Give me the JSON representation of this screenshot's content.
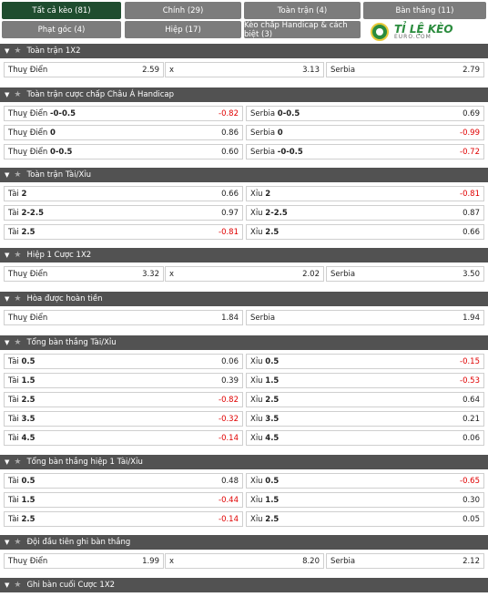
{
  "tabs": [
    {
      "label": "Tất cả kèo (81)",
      "active": true
    },
    {
      "label": "Chính (29)"
    },
    {
      "label": "Toàn trận (4)"
    },
    {
      "label": "Bàn thắng (11)"
    },
    {
      "label": "Phạt góc (4)"
    },
    {
      "label": "Hiệp (17)"
    },
    {
      "label": "Kèo chấp Handicap & cách biệt (3)"
    }
  ],
  "logo": {
    "main": "TỈ LỆ KÈO",
    "sub": "EURO.COM"
  },
  "sections": [
    {
      "title": "Toàn trận 1X2",
      "layout": "three",
      "rows": [
        [
          {
            "label": "Thuỵ Điển",
            "odd": "2.59"
          },
          {
            "label": "x",
            "odd": "3.13"
          },
          {
            "label": "Serbia",
            "odd": "2.79"
          }
        ]
      ]
    },
    {
      "title": "Toàn trận cược chấp Châu Á Handicap",
      "layout": "two",
      "rows": [
        [
          {
            "label": "Thuỵ Điển",
            "bold": "-0-0.5",
            "odd": "-0.82"
          },
          {
            "label": "Serbia",
            "bold": "0-0.5",
            "odd": "0.69"
          }
        ],
        [
          {
            "label": "Thuỵ Điển",
            "bold": "0",
            "odd": "0.86"
          },
          {
            "label": "Serbia",
            "bold": "0",
            "odd": "-0.99"
          }
        ],
        [
          {
            "label": "Thuỵ Điển",
            "bold": "0-0.5",
            "odd": "0.60"
          },
          {
            "label": "Serbia",
            "bold": "-0-0.5",
            "odd": "-0.72"
          }
        ]
      ]
    },
    {
      "title": "Toàn trận Tài/Xỉu",
      "layout": "two",
      "rows": [
        [
          {
            "label": "Tài",
            "bold": "2",
            "odd": "0.66"
          },
          {
            "label": "Xỉu",
            "bold": "2",
            "odd": "-0.81"
          }
        ],
        [
          {
            "label": "Tài",
            "bold": "2-2.5",
            "odd": "0.97"
          },
          {
            "label": "Xỉu",
            "bold": "2-2.5",
            "odd": "0.87"
          }
        ],
        [
          {
            "label": "Tài",
            "bold": "2.5",
            "odd": "-0.81"
          },
          {
            "label": "Xỉu",
            "bold": "2.5",
            "odd": "0.66"
          }
        ]
      ]
    },
    {
      "title": "Hiệp 1 Cược 1X2",
      "layout": "three",
      "rows": [
        [
          {
            "label": "Thuỵ Điển",
            "odd": "3.32"
          },
          {
            "label": "x",
            "odd": "2.02"
          },
          {
            "label": "Serbia",
            "odd": "3.50"
          }
        ]
      ]
    },
    {
      "title": "Hòa được hoàn tiền",
      "layout": "two",
      "rows": [
        [
          {
            "label": "Thuỵ Điển",
            "odd": "1.84"
          },
          {
            "label": "Serbia",
            "odd": "1.94"
          }
        ]
      ]
    },
    {
      "title": "Tổng bàn thắng Tài/Xỉu",
      "layout": "two",
      "rows": [
        [
          {
            "label": "Tài",
            "bold": "0.5",
            "odd": "0.06"
          },
          {
            "label": "Xỉu",
            "bold": "0.5",
            "odd": "-0.15"
          }
        ],
        [
          {
            "label": "Tài",
            "bold": "1.5",
            "odd": "0.39"
          },
          {
            "label": "Xỉu",
            "bold": "1.5",
            "odd": "-0.53"
          }
        ],
        [
          {
            "label": "Tài",
            "bold": "2.5",
            "odd": "-0.82"
          },
          {
            "label": "Xỉu",
            "bold": "2.5",
            "odd": "0.64"
          }
        ],
        [
          {
            "label": "Tài",
            "bold": "3.5",
            "odd": "-0.32"
          },
          {
            "label": "Xỉu",
            "bold": "3.5",
            "odd": "0.21"
          }
        ],
        [
          {
            "label": "Tài",
            "bold": "4.5",
            "odd": "-0.14"
          },
          {
            "label": "Xỉu",
            "bold": "4.5",
            "odd": "0.06"
          }
        ]
      ]
    },
    {
      "title": "Tổng bàn thắng hiệp 1 Tài/Xỉu",
      "layout": "two",
      "rows": [
        [
          {
            "label": "Tài",
            "bold": "0.5",
            "odd": "0.48"
          },
          {
            "label": "Xỉu",
            "bold": "0.5",
            "odd": "-0.65"
          }
        ],
        [
          {
            "label": "Tài",
            "bold": "1.5",
            "odd": "-0.44"
          },
          {
            "label": "Xỉu",
            "bold": "1.5",
            "odd": "0.30"
          }
        ],
        [
          {
            "label": "Tài",
            "bold": "2.5",
            "odd": "-0.14"
          },
          {
            "label": "Xỉu",
            "bold": "2.5",
            "odd": "0.05"
          }
        ]
      ]
    },
    {
      "title": "Đội đầu tiên ghi bàn thắng",
      "layout": "three",
      "rows": [
        [
          {
            "label": "Thuỵ Điển",
            "odd": "1.99"
          },
          {
            "label": "x",
            "odd": "8.20"
          },
          {
            "label": "Serbia",
            "odd": "2.12"
          }
        ]
      ]
    },
    {
      "title": "Ghi bàn cuối Cược 1X2",
      "layout": "three",
      "rows": []
    }
  ]
}
